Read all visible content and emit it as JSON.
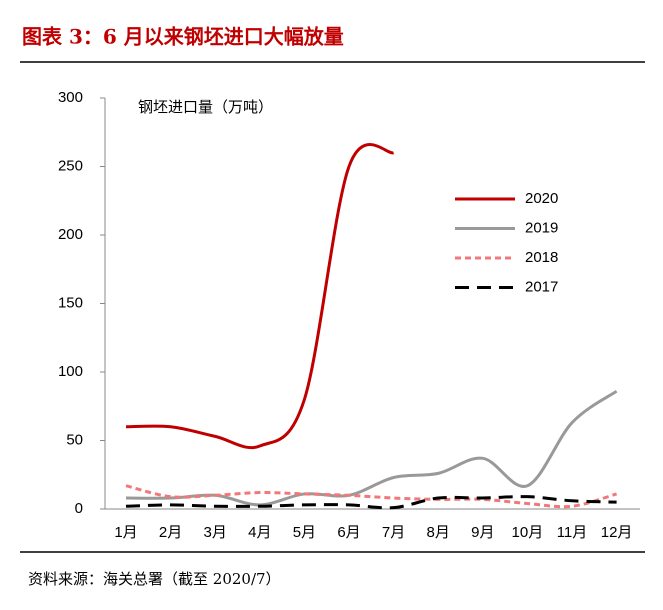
{
  "chart_data": {
    "type": "line",
    "title": "图表 3：6 月以来钢坯进口大幅放量",
    "y_label": "钢坯进口量（万吨）",
    "source": "资料来源：海关总署（截至 2020/7）",
    "categories": [
      "1月",
      "2月",
      "3月",
      "4月",
      "5月",
      "6月",
      "7月",
      "8月",
      "9月",
      "10月",
      "11月",
      "12月"
    ],
    "series": [
      {
        "name": "2020",
        "color": "#c00000",
        "dash": "none",
        "values": [
          60,
          60,
          53,
          46,
          80,
          250,
          260,
          null,
          null,
          null,
          null,
          null
        ]
      },
      {
        "name": "2019",
        "color": "#999999",
        "dash": "none",
        "values": [
          8,
          8,
          10,
          3,
          11,
          10,
          23,
          26,
          37,
          17,
          63,
          86
        ]
      },
      {
        "name": "2018",
        "color": "#f07878",
        "dash": "6,4",
        "values": [
          17,
          9,
          10,
          12,
          11,
          10,
          8,
          7,
          7,
          4,
          2,
          11
        ]
      },
      {
        "name": "2017",
        "color": "#000000",
        "dash": "14,8",
        "values": [
          2,
          3,
          2,
          2,
          3,
          3,
          1,
          8,
          8,
          9,
          6,
          5
        ]
      }
    ],
    "ylim": [
      0,
      300
    ],
    "yticks": [
      0,
      50,
      100,
      150,
      200,
      250,
      300
    ]
  }
}
